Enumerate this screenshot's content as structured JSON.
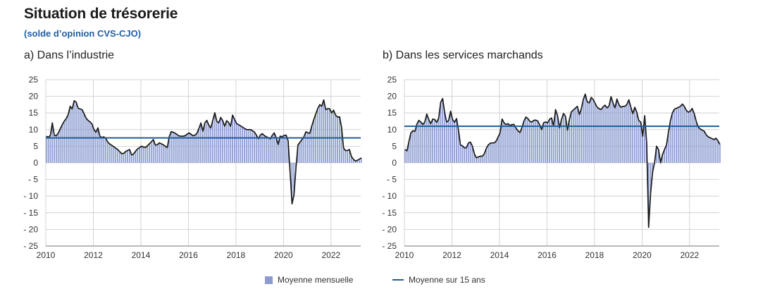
{
  "header": {
    "title": "Situation de trésorerie",
    "subtitle": "(solde d’opinion CVS-CJO)"
  },
  "legend": {
    "bars_label": "Moyenne mensuelle",
    "line_label": "Moyenne sur 15 ans"
  },
  "colors": {
    "bars": "#8b9bd0",
    "line": "#1a1a1a",
    "average": "#1f5d99",
    "subtitle": "#1f5fa8"
  },
  "chart_data": [
    {
      "type": "bar",
      "title": "a)  Dans l’industrie",
      "ylim": [
        -25,
        25
      ],
      "yticks": [
        25,
        20,
        15,
        10,
        5,
        0,
        -5,
        -10,
        -15,
        -20,
        -25
      ],
      "ytick_labels": [
        "25",
        "20",
        "15",
        "10",
        "5",
        "0",
        "- 5",
        "- 10",
        "- 15",
        "- 20",
        "- 25"
      ],
      "xlim": [
        2010,
        2023.25
      ],
      "xticks": [
        2010,
        2012,
        2014,
        2016,
        2018,
        2020,
        2022
      ],
      "average_15y": 7.5,
      "series_monthly_anchors": [
        [
          2010.0,
          8
        ],
        [
          2010.15,
          7.5
        ],
        [
          2010.25,
          12
        ],
        [
          2010.35,
          7.5
        ],
        [
          2010.5,
          9
        ],
        [
          2010.7,
          12
        ],
        [
          2010.9,
          14
        ],
        [
          2011.0,
          17
        ],
        [
          2011.1,
          16
        ],
        [
          2011.2,
          20
        ],
        [
          2011.3,
          16.5
        ],
        [
          2011.5,
          16
        ],
        [
          2011.7,
          13
        ],
        [
          2011.9,
          12
        ],
        [
          2012.0,
          10
        ],
        [
          2012.1,
          9
        ],
        [
          2012.15,
          11
        ],
        [
          2012.25,
          8
        ],
        [
          2012.35,
          7.5
        ],
        [
          2012.45,
          8
        ],
        [
          2012.6,
          6
        ],
        [
          2012.8,
          5
        ],
        [
          2013.0,
          4
        ],
        [
          2013.2,
          2.5
        ],
        [
          2013.35,
          3.5
        ],
        [
          2013.5,
          4
        ],
        [
          2013.6,
          2
        ],
        [
          2013.8,
          4
        ],
        [
          2014.0,
          5
        ],
        [
          2014.15,
          4.5
        ],
        [
          2014.3,
          5.5
        ],
        [
          2014.5,
          7
        ],
        [
          2014.6,
          5
        ],
        [
          2014.75,
          6
        ],
        [
          2014.9,
          5.5
        ],
        [
          2015.1,
          4.5
        ],
        [
          2015.2,
          9.5
        ],
        [
          2015.4,
          9
        ],
        [
          2015.6,
          8
        ],
        [
          2015.8,
          8
        ],
        [
          2016.0,
          9
        ],
        [
          2016.2,
          8
        ],
        [
          2016.35,
          9
        ],
        [
          2016.5,
          12
        ],
        [
          2016.6,
          9
        ],
        [
          2016.7,
          13.5
        ],
        [
          2016.8,
          12
        ],
        [
          2016.9,
          10
        ],
        [
          2017.1,
          15.5
        ],
        [
          2017.2,
          11
        ],
        [
          2017.35,
          14
        ],
        [
          2017.5,
          11
        ],
        [
          2017.6,
          13
        ],
        [
          2017.75,
          11
        ],
        [
          2017.85,
          15
        ],
        [
          2017.95,
          12
        ],
        [
          2018.2,
          11
        ],
        [
          2018.4,
          10
        ],
        [
          2018.6,
          10
        ],
        [
          2018.8,
          9
        ],
        [
          2018.9,
          7
        ],
        [
          2019.05,
          9
        ],
        [
          2019.2,
          8
        ],
        [
          2019.35,
          7.5
        ],
        [
          2019.45,
          7
        ],
        [
          2019.55,
          9.5
        ],
        [
          2019.65,
          8
        ],
        [
          2019.75,
          5.5
        ],
        [
          2019.85,
          8.5
        ],
        [
          2019.95,
          7.5
        ],
        [
          2020.05,
          9
        ],
        [
          2020.15,
          7
        ],
        [
          2020.2,
          6
        ],
        [
          2020.3,
          -11
        ],
        [
          2020.35,
          -13
        ],
        [
          2020.45,
          -8
        ],
        [
          2020.55,
          5
        ],
        [
          2020.7,
          6.5
        ],
        [
          2020.85,
          8
        ],
        [
          2020.95,
          10
        ],
        [
          2021.05,
          8
        ],
        [
          2021.2,
          12
        ],
        [
          2021.35,
          15
        ],
        [
          2021.45,
          17
        ],
        [
          2021.55,
          18
        ],
        [
          2021.6,
          16.5
        ],
        [
          2021.65,
          19.5
        ],
        [
          2021.75,
          16
        ],
        [
          2021.9,
          16.5
        ],
        [
          2022.0,
          15
        ],
        [
          2022.1,
          16
        ],
        [
          2022.2,
          13.5
        ],
        [
          2022.3,
          14
        ],
        [
          2022.4,
          13.5
        ],
        [
          2022.45,
          5
        ],
        [
          2022.6,
          3.5
        ],
        [
          2022.75,
          4
        ],
        [
          2022.85,
          1.5
        ],
        [
          2023.0,
          0.5
        ],
        [
          2023.15,
          1
        ],
        [
          2023.25,
          1.5
        ]
      ]
    },
    {
      "type": "bar",
      "title": "b)  Dans les services marchands",
      "ylim": [
        -25,
        25
      ],
      "yticks": [
        25,
        20,
        15,
        10,
        5,
        0,
        -5,
        -10,
        -15,
        -20,
        -25
      ],
      "ytick_labels": [
        "25",
        "20",
        "15",
        "10",
        "5",
        "0",
        "- 5",
        "- 10",
        "- 15",
        "- 20",
        "- 25"
      ],
      "xlim": [
        2010,
        2023.25
      ],
      "xticks": [
        2010,
        2012,
        2014,
        2016,
        2018,
        2020,
        2022
      ],
      "average_15y": 11,
      "series_monthly_anchors": [
        [
          2010.0,
          4
        ],
        [
          2010.1,
          3.5
        ],
        [
          2010.2,
          8
        ],
        [
          2010.3,
          10
        ],
        [
          2010.4,
          9
        ],
        [
          2010.55,
          13
        ],
        [
          2010.7,
          12
        ],
        [
          2010.8,
          11
        ],
        [
          2010.9,
          15
        ],
        [
          2011.0,
          13
        ],
        [
          2011.1,
          11.5
        ],
        [
          2011.2,
          14
        ],
        [
          2011.3,
          12
        ],
        [
          2011.4,
          12.5
        ],
        [
          2011.55,
          21
        ],
        [
          2011.7,
          13.5
        ],
        [
          2011.8,
          11
        ],
        [
          2011.9,
          16
        ],
        [
          2012.0,
          13
        ],
        [
          2012.1,
          12
        ],
        [
          2012.2,
          14
        ],
        [
          2012.3,
          5.5
        ],
        [
          2012.45,
          5
        ],
        [
          2012.55,
          4
        ],
        [
          2012.7,
          6.5
        ],
        [
          2012.8,
          6
        ],
        [
          2012.9,
          3
        ],
        [
          2013.0,
          1.5
        ],
        [
          2013.15,
          2
        ],
        [
          2013.3,
          2
        ],
        [
          2013.45,
          5
        ],
        [
          2013.6,
          6
        ],
        [
          2013.8,
          6
        ],
        [
          2014.0,
          9
        ],
        [
          2014.1,
          14
        ],
        [
          2014.2,
          11
        ],
        [
          2014.3,
          12
        ],
        [
          2014.45,
          11
        ],
        [
          2014.55,
          12
        ],
        [
          2014.7,
          10
        ],
        [
          2014.85,
          9
        ],
        [
          2015.0,
          12.5
        ],
        [
          2015.1,
          14
        ],
        [
          2015.2,
          13
        ],
        [
          2015.3,
          12
        ],
        [
          2015.45,
          13
        ],
        [
          2015.6,
          12.5
        ],
        [
          2015.75,
          10
        ],
        [
          2015.85,
          12.5
        ],
        [
          2016.0,
          12
        ],
        [
          2016.15,
          14
        ],
        [
          2016.25,
          11
        ],
        [
          2016.35,
          17
        ],
        [
          2016.5,
          10.5
        ],
        [
          2016.65,
          15
        ],
        [
          2016.75,
          14
        ],
        [
          2016.85,
          9
        ],
        [
          2016.95,
          15
        ],
        [
          2017.1,
          16
        ],
        [
          2017.25,
          17
        ],
        [
          2017.35,
          14
        ],
        [
          2017.5,
          19
        ],
        [
          2017.6,
          21
        ],
        [
          2017.7,
          17
        ],
        [
          2017.85,
          20
        ],
        [
          2017.95,
          18.5
        ],
        [
          2018.1,
          16.5
        ],
        [
          2018.25,
          16
        ],
        [
          2018.4,
          17.5
        ],
        [
          2018.55,
          16
        ],
        [
          2018.7,
          21
        ],
        [
          2018.8,
          15
        ],
        [
          2018.9,
          19.5
        ],
        [
          2019.05,
          16.5
        ],
        [
          2019.15,
          17
        ],
        [
          2019.3,
          17
        ],
        [
          2019.45,
          19.5
        ],
        [
          2019.55,
          14
        ],
        [
          2019.7,
          17.5
        ],
        [
          2019.8,
          13
        ],
        [
          2019.95,
          12
        ],
        [
          2020.0,
          8
        ],
        [
          2020.05,
          13
        ],
        [
          2020.15,
          16.5
        ],
        [
          2020.2,
          -15
        ],
        [
          2020.28,
          -22
        ],
        [
          2020.35,
          -5
        ],
        [
          2020.5,
          0
        ],
        [
          2020.6,
          6
        ],
        [
          2020.7,
          3
        ],
        [
          2020.75,
          0
        ],
        [
          2020.9,
          4.5
        ],
        [
          2020.95,
          3
        ],
        [
          2021.1,
          10
        ],
        [
          2021.2,
          14
        ],
        [
          2021.3,
          16
        ],
        [
          2021.45,
          16.5
        ],
        [
          2021.6,
          17
        ],
        [
          2021.7,
          18
        ],
        [
          2021.8,
          16
        ],
        [
          2021.95,
          15
        ],
        [
          2022.1,
          16.5
        ],
        [
          2022.2,
          14
        ],
        [
          2022.3,
          11
        ],
        [
          2022.45,
          10
        ],
        [
          2022.6,
          9.5
        ],
        [
          2022.7,
          8
        ],
        [
          2022.85,
          7.5
        ],
        [
          2023.0,
          7
        ],
        [
          2023.1,
          7.5
        ],
        [
          2023.25,
          5.5
        ]
      ]
    }
  ]
}
